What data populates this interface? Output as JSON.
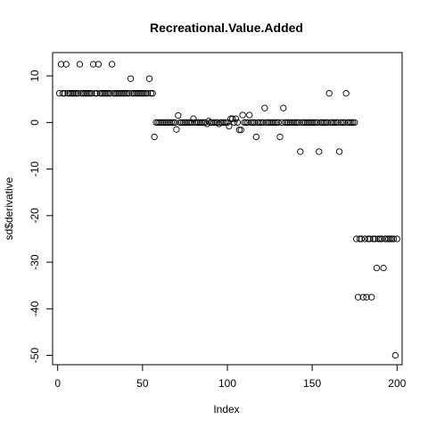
{
  "chart_data": {
    "type": "scatter",
    "title": "Recreational.Value.Added",
    "xlabel": "Index",
    "ylabel": "sd$derivative",
    "xlim": [
      -3,
      203
    ],
    "ylim": [
      -52,
      15
    ],
    "x_ticks": [
      0,
      50,
      100,
      150,
      200
    ],
    "y_ticks": [
      10,
      0,
      -10,
      -20,
      -30,
      -40,
      -50
    ],
    "x_tick_labels": [
      "0",
      "50",
      "100",
      "150",
      "200"
    ],
    "y_tick_labels": [
      "10",
      "0",
      "-10",
      "-20",
      "-30",
      "-40",
      "-50"
    ],
    "marker": "open-circle",
    "grid": false,
    "points": [
      [
        1,
        6.25
      ],
      [
        2,
        12.5
      ],
      [
        3,
        6.25
      ],
      [
        4,
        6.25
      ],
      [
        5,
        12.5
      ],
      [
        6,
        6.25
      ],
      [
        7,
        6.25
      ],
      [
        8,
        6.25
      ],
      [
        9,
        6.25
      ],
      [
        10,
        6.25
      ],
      [
        11,
        6.25
      ],
      [
        12,
        6.25
      ],
      [
        13,
        12.5
      ],
      [
        14,
        6.25
      ],
      [
        15,
        6.25
      ],
      [
        16,
        6.25
      ],
      [
        17,
        6.25
      ],
      [
        18,
        6.25
      ],
      [
        19,
        6.25
      ],
      [
        20,
        6.25
      ],
      [
        21,
        12.5
      ],
      [
        22,
        6.25
      ],
      [
        23,
        6.25
      ],
      [
        24,
        12.5
      ],
      [
        25,
        6.25
      ],
      [
        26,
        6.25
      ],
      [
        27,
        6.25
      ],
      [
        28,
        6.25
      ],
      [
        29,
        6.25
      ],
      [
        30,
        6.25
      ],
      [
        31,
        6.25
      ],
      [
        32,
        12.5
      ],
      [
        33,
        6.25
      ],
      [
        34,
        6.25
      ],
      [
        35,
        6.25
      ],
      [
        36,
        6.25
      ],
      [
        37,
        6.25
      ],
      [
        38,
        6.25
      ],
      [
        39,
        6.25
      ],
      [
        40,
        6.25
      ],
      [
        41,
        6.25
      ],
      [
        42,
        6.25
      ],
      [
        43,
        9.4
      ],
      [
        44,
        6.25
      ],
      [
        45,
        6.25
      ],
      [
        46,
        6.25
      ],
      [
        47,
        6.25
      ],
      [
        48,
        6.25
      ],
      [
        49,
        6.25
      ],
      [
        50,
        6.25
      ],
      [
        51,
        6.25
      ],
      [
        52,
        6.25
      ],
      [
        53,
        6.25
      ],
      [
        54,
        9.4
      ],
      [
        55,
        6.25
      ],
      [
        56,
        6.25
      ],
      [
        57,
        -3.1
      ],
      [
        58,
        0
      ],
      [
        59,
        0
      ],
      [
        60,
        0
      ],
      [
        61,
        0
      ],
      [
        62,
        0
      ],
      [
        63,
        0
      ],
      [
        64,
        0
      ],
      [
        65,
        0
      ],
      [
        66,
        0
      ],
      [
        67,
        0
      ],
      [
        68,
        0
      ],
      [
        69,
        0
      ],
      [
        70,
        -1.5
      ],
      [
        71,
        1.5
      ],
      [
        72,
        0
      ],
      [
        73,
        0
      ],
      [
        74,
        0
      ],
      [
        75,
        0
      ],
      [
        76,
        0
      ],
      [
        77,
        0
      ],
      [
        78,
        0
      ],
      [
        79,
        0
      ],
      [
        80,
        0.8
      ],
      [
        81,
        0
      ],
      [
        82,
        0
      ],
      [
        83,
        0
      ],
      [
        84,
        0
      ],
      [
        85,
        0
      ],
      [
        86,
        0
      ],
      [
        87,
        0
      ],
      [
        88,
        -0.3
      ],
      [
        89,
        0.3
      ],
      [
        90,
        0
      ],
      [
        91,
        0
      ],
      [
        92,
        0
      ],
      [
        93,
        0
      ],
      [
        94,
        0
      ],
      [
        95,
        -0.3
      ],
      [
        96,
        0
      ],
      [
        97,
        0
      ],
      [
        98,
        0
      ],
      [
        99,
        0
      ],
      [
        100,
        0
      ],
      [
        101,
        -0.8
      ],
      [
        102,
        0.8
      ],
      [
        103,
        0.8
      ],
      [
        104,
        0
      ],
      [
        105,
        0.8
      ],
      [
        106,
        0
      ],
      [
        107,
        -1.6
      ],
      [
        108,
        -1.6
      ],
      [
        109,
        1.6
      ],
      [
        110,
        0
      ],
      [
        111,
        0
      ],
      [
        112,
        0
      ],
      [
        113,
        1.6
      ],
      [
        114,
        0
      ],
      [
        115,
        0
      ],
      [
        116,
        0
      ],
      [
        117,
        -3.1
      ],
      [
        118,
        0
      ],
      [
        119,
        0
      ],
      [
        120,
        0
      ],
      [
        121,
        0
      ],
      [
        122,
        3.1
      ],
      [
        123,
        0
      ],
      [
        124,
        0
      ],
      [
        125,
        0
      ],
      [
        126,
        0
      ],
      [
        127,
        0
      ],
      [
        128,
        0
      ],
      [
        129,
        0
      ],
      [
        130,
        0
      ],
      [
        131,
        -3.1
      ],
      [
        132,
        0
      ],
      [
        133,
        3.1
      ],
      [
        134,
        0
      ],
      [
        135,
        0
      ],
      [
        136,
        0
      ],
      [
        137,
        0
      ],
      [
        138,
        0
      ],
      [
        139,
        0
      ],
      [
        140,
        0
      ],
      [
        141,
        0
      ],
      [
        142,
        0
      ],
      [
        143,
        -6.25
      ],
      [
        144,
        0
      ],
      [
        145,
        0
      ],
      [
        146,
        0
      ],
      [
        147,
        0
      ],
      [
        148,
        0
      ],
      [
        149,
        0
      ],
      [
        150,
        0
      ],
      [
        151,
        0
      ],
      [
        152,
        0
      ],
      [
        153,
        0
      ],
      [
        154,
        -6.25
      ],
      [
        155,
        0
      ],
      [
        156,
        0
      ],
      [
        157,
        0
      ],
      [
        158,
        0
      ],
      [
        159,
        0
      ],
      [
        160,
        6.25
      ],
      [
        161,
        0
      ],
      [
        162,
        0
      ],
      [
        163,
        0
      ],
      [
        164,
        0
      ],
      [
        165,
        0
      ],
      [
        166,
        -6.25
      ],
      [
        167,
        0
      ],
      [
        168,
        0
      ],
      [
        169,
        0
      ],
      [
        170,
        6.25
      ],
      [
        171,
        0
      ],
      [
        172,
        0
      ],
      [
        173,
        0
      ],
      [
        174,
        0
      ],
      [
        175,
        0
      ],
      [
        176,
        -25
      ],
      [
        177,
        -37.5
      ],
      [
        178,
        -25
      ],
      [
        179,
        -25
      ],
      [
        180,
        -37.5
      ],
      [
        181,
        -25
      ],
      [
        182,
        -37.5
      ],
      [
        183,
        -25
      ],
      [
        184,
        -25
      ],
      [
        185,
        -37.5
      ],
      [
        186,
        -25
      ],
      [
        187,
        -25
      ],
      [
        188,
        -31.25
      ],
      [
        189,
        -25
      ],
      [
        190,
        -25
      ],
      [
        191,
        -25
      ],
      [
        192,
        -31.25
      ],
      [
        193,
        -25
      ],
      [
        194,
        -25
      ],
      [
        195,
        -25
      ],
      [
        196,
        -25
      ],
      [
        197,
        -25
      ],
      [
        198,
        -25
      ],
      [
        199,
        -50
      ],
      [
        200,
        -25
      ]
    ]
  }
}
